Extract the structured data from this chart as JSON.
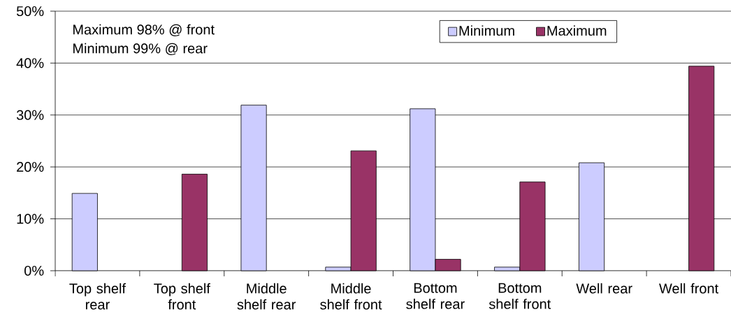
{
  "chart_data": {
    "type": "bar",
    "categories": [
      "Top shelf rear",
      "Top shelf front",
      "Middle shelf rear",
      "Middle shelf front",
      "Bottom shelf rear",
      "Bottom shelf front",
      "Well rear",
      "Well front"
    ],
    "series": [
      {
        "name": "Minimum",
        "color": "#ccccff",
        "values": [
          14.9,
          null,
          31.9,
          0.7,
          31.2,
          0.7,
          20.8,
          null
        ]
      },
      {
        "name": "Maximum",
        "color": "#993366",
        "values": [
          null,
          18.6,
          null,
          23.1,
          2.2,
          17.1,
          null,
          39.4
        ]
      }
    ],
    "ylim": [
      0,
      50
    ],
    "yticks": [
      {
        "value": 0,
        "label": "0%"
      },
      {
        "value": 10,
        "label": "10%"
      },
      {
        "value": 20,
        "label": "20%"
      },
      {
        "value": 30,
        "label": "30%"
      },
      {
        "value": 40,
        "label": "40%"
      },
      {
        "value": 50,
        "label": "50%"
      }
    ],
    "grid": "y",
    "legend": "top right",
    "annotations": [
      "Maximum 98% @ front",
      "Minimum 99% @ rear"
    ]
  }
}
